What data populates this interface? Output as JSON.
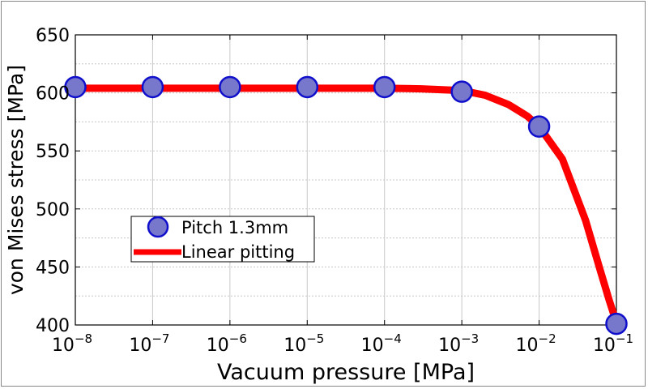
{
  "chart_data": {
    "type": "scatter",
    "title": "",
    "xlabel": "Vacuum pressure [MPa]",
    "ylabel": "von Mises stress [MPa]",
    "x_scale": "log",
    "xlim": [
      1e-08,
      0.1
    ],
    "ylim": [
      400,
      650
    ],
    "grid": true,
    "x_ticks": [
      {
        "value": 1e-08,
        "base": "10",
        "exp": "−8"
      },
      {
        "value": 1e-07,
        "base": "10",
        "exp": "−7"
      },
      {
        "value": 1e-06,
        "base": "10",
        "exp": "−6"
      },
      {
        "value": 1e-05,
        "base": "10",
        "exp": "−5"
      },
      {
        "value": 0.0001,
        "base": "10",
        "exp": "−4"
      },
      {
        "value": 0.001,
        "base": "10",
        "exp": "−3"
      },
      {
        "value": 0.01,
        "base": "10",
        "exp": "−2"
      },
      {
        "value": 0.1,
        "base": "10",
        "exp": "−1"
      }
    ],
    "y_ticks": [
      400,
      450,
      500,
      550,
      600,
      650
    ],
    "series": [
      {
        "name": "Pitch 1.3mm",
        "kind": "markers",
        "color": "#7777cc",
        "edge_color": "#1010cc",
        "x": [
          1e-08,
          1e-07,
          1e-06,
          1e-05,
          0.0001,
          0.001,
          0.01,
          0.1
        ],
        "y": [
          605,
          605,
          605,
          605,
          605,
          601,
          571,
          401
        ]
      },
      {
        "name": "Linear pitting",
        "kind": "line",
        "color": "#ff0000",
        "x": [
          1e-08,
          0.0001,
          0.0003,
          0.001,
          0.002,
          0.004,
          0.007,
          0.01,
          0.02,
          0.04,
          0.06,
          0.08,
          0.1
        ],
        "y": [
          604,
          604,
          603.5,
          602,
          598,
          590,
          580,
          571,
          543,
          490,
          450,
          422,
          402
        ]
      }
    ],
    "legend": {
      "placement": "lower-left"
    }
  }
}
